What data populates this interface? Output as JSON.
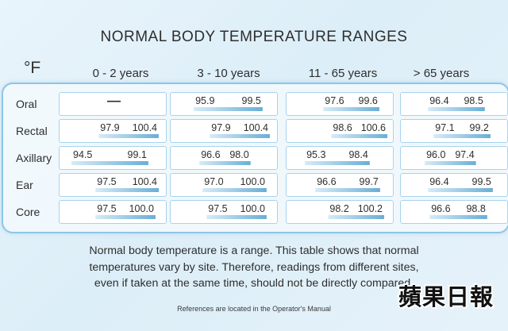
{
  "title": "NORMAL BODY TEMPERATURE RANGES",
  "unit": "°F",
  "note_lines": [
    "Normal body temperature is a range. This table shows that normal",
    "temperatures vary by site. Therefore, readings from different sites,",
    "even if taken at the same time, should not be directly compared."
  ],
  "reference": "References are located in the Operator's Manual",
  "logo": "蘋果日報",
  "colors": {
    "bar": "#6aaed6",
    "border": "#8ec6e6"
  },
  "chart_data": {
    "type": "table",
    "title": "NORMAL BODY TEMPERATURE RANGES",
    "unit": "°F",
    "columns": [
      "0  -  2 years",
      "3  -  10 years",
      "11  -  65 years",
      "> 65 years"
    ],
    "rows": [
      {
        "site": "Oral",
        "ranges": [
          null,
          [
            95.9,
            99.5
          ],
          [
            97.6,
            99.6
          ],
          [
            96.4,
            98.5
          ]
        ],
        "empty_mark": "—"
      },
      {
        "site": "Rectal",
        "ranges": [
          [
            97.9,
            100.4
          ],
          [
            97.9,
            100.4
          ],
          [
            98.6,
            100.6
          ],
          [
            97.1,
            99.2
          ]
        ]
      },
      {
        "site": "Axillary",
        "ranges": [
          [
            94.5,
            99.1
          ],
          [
            96.6,
            98.0
          ],
          [
            95.3,
            98.4
          ],
          [
            96.0,
            97.4
          ]
        ]
      },
      {
        "site": "Ear",
        "ranges": [
          [
            97.5,
            100.4
          ],
          [
            97.0,
            100.0
          ],
          [
            96.6,
            99.7
          ],
          [
            96.4,
            99.5
          ]
        ]
      },
      {
        "site": "Core",
        "ranges": [
          [
            97.5,
            100.0
          ],
          [
            97.5,
            100.0
          ],
          [
            98.2,
            100.2
          ],
          [
            96.6,
            98.8
          ]
        ]
      }
    ],
    "scale_min": 94.5,
    "scale_max": 100.6
  }
}
